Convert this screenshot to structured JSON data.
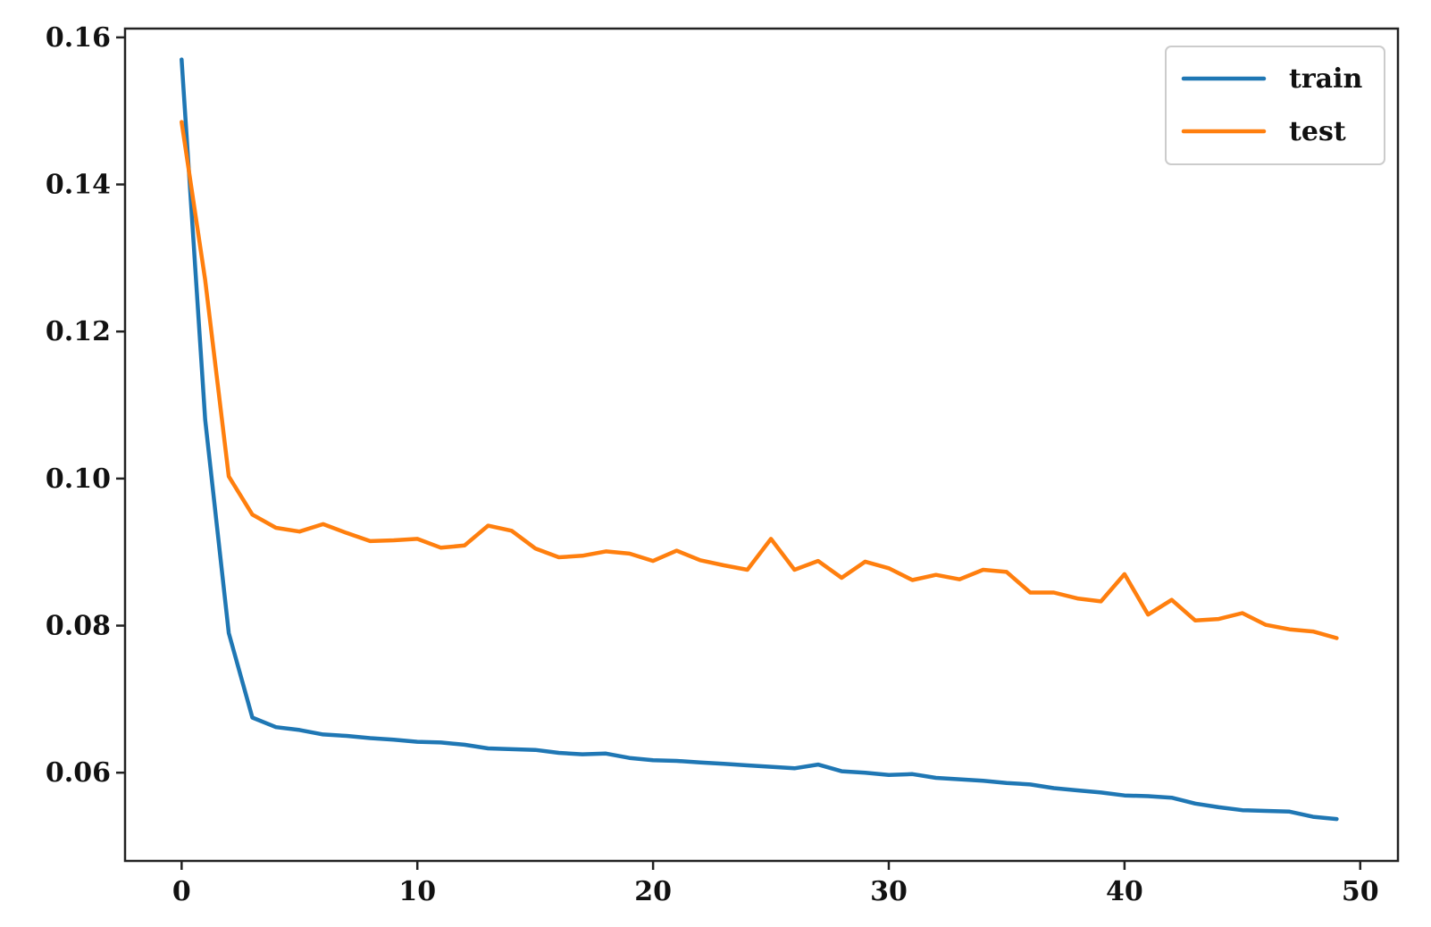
{
  "chart_data": {
    "type": "line",
    "title": "",
    "xlabel": "",
    "ylabel": "",
    "xlim": [
      -2.4,
      51.6
    ],
    "ylim": [
      0.048,
      0.1612
    ],
    "xticks": [
      0,
      10,
      20,
      30,
      40,
      50
    ],
    "yticks": [
      0.06,
      0.08,
      0.1,
      0.12,
      0.14,
      0.16
    ],
    "xtick_labels": [
      "0",
      "10",
      "20",
      "30",
      "40",
      "50"
    ],
    "ytick_labels": [
      "0.06",
      "0.08",
      "0.10",
      "0.12",
      "0.14",
      "0.16"
    ],
    "grid": false,
    "legend_position": "top-right",
    "x": [
      0,
      1,
      2,
      3,
      4,
      5,
      6,
      7,
      8,
      9,
      10,
      11,
      12,
      13,
      14,
      15,
      16,
      17,
      18,
      19,
      20,
      21,
      22,
      23,
      24,
      25,
      26,
      27,
      28,
      29,
      30,
      31,
      32,
      33,
      34,
      35,
      36,
      37,
      38,
      39,
      40,
      41,
      42,
      43,
      44,
      45,
      46,
      47,
      48,
      49
    ],
    "series": [
      {
        "name": "train",
        "color": "#1f77b4",
        "values": [
          0.157,
          0.108,
          0.079,
          0.0675,
          0.0662,
          0.0658,
          0.0652,
          0.065,
          0.0647,
          0.0645,
          0.0642,
          0.0641,
          0.0638,
          0.0633,
          0.0632,
          0.0631,
          0.0627,
          0.0625,
          0.0626,
          0.062,
          0.0617,
          0.0616,
          0.0614,
          0.0612,
          0.061,
          0.0608,
          0.0606,
          0.0611,
          0.0602,
          0.06,
          0.0597,
          0.0598,
          0.0593,
          0.0591,
          0.0589,
          0.0586,
          0.0584,
          0.0579,
          0.0576,
          0.0573,
          0.0569,
          0.0568,
          0.0566,
          0.0558,
          0.0553,
          0.0549,
          0.0548,
          0.0547,
          0.054,
          0.0537
        ]
      },
      {
        "name": "test",
        "color": "#ff7f0e",
        "values": [
          0.1485,
          0.127,
          0.1003,
          0.0951,
          0.0933,
          0.0928,
          0.0938,
          0.0926,
          0.0915,
          0.0916,
          0.0918,
          0.0906,
          0.0909,
          0.0936,
          0.0929,
          0.0905,
          0.0893,
          0.0895,
          0.0901,
          0.0898,
          0.0888,
          0.0902,
          0.0889,
          0.0882,
          0.0876,
          0.0918,
          0.0876,
          0.0888,
          0.0865,
          0.0887,
          0.0878,
          0.0862,
          0.0869,
          0.0863,
          0.0876,
          0.0873,
          0.0845,
          0.0845,
          0.0837,
          0.0833,
          0.087,
          0.0815,
          0.0835,
          0.0807,
          0.0809,
          0.0817,
          0.0801,
          0.0795,
          0.0792,
          0.0783
        ]
      }
    ]
  }
}
